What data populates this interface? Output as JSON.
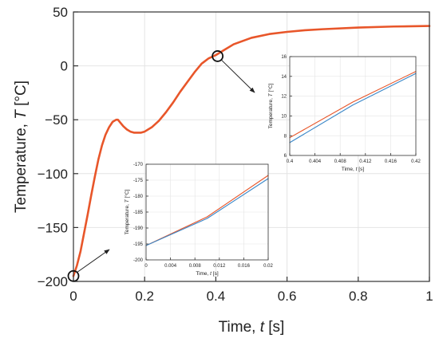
{
  "chart_data": [
    {
      "type": "line",
      "role": "main",
      "xlabel": "Time, t [s]",
      "ylabel": "Temperature, T [°C]",
      "xlim": [
        0,
        1
      ],
      "ylim": [
        -200,
        50
      ],
      "xticks": [
        0,
        0.2,
        0.4,
        0.6,
        0.8,
        1
      ],
      "xtick_labels": [
        "0",
        "0.2",
        "0.4",
        "0.6",
        "0.8",
        "1"
      ],
      "yticks": [
        -200,
        -150,
        -100,
        -50,
        0,
        50
      ],
      "ytick_labels": [
        "−200",
        "−150",
        "−100",
        "−50",
        "0",
        "50"
      ],
      "grid": true,
      "series": [
        {
          "color": "#e8562a",
          "x": [
            0,
            0.01,
            0.02,
            0.03,
            0.04,
            0.05,
            0.06,
            0.07,
            0.08,
            0.09,
            0.1,
            0.11,
            0.12,
            0.125,
            0.13,
            0.14,
            0.15,
            0.16,
            0.17,
            0.18,
            0.19,
            0.2,
            0.22,
            0.24,
            0.26,
            0.28,
            0.3,
            0.32,
            0.34,
            0.36,
            0.38,
            0.4,
            0.42,
            0.45,
            0.5,
            0.55,
            0.6,
            0.65,
            0.7,
            0.8,
            0.9,
            1.0
          ],
          "y": [
            -195,
            -185,
            -172,
            -155,
            -138,
            -120,
            -103,
            -87,
            -74,
            -64,
            -57,
            -52,
            -50,
            -50,
            -52,
            -56,
            -59,
            -61,
            -62,
            -62,
            -62,
            -61,
            -57,
            -51,
            -43,
            -34,
            -24,
            -15,
            -6,
            2,
            7,
            10,
            14,
            20,
            26,
            29.5,
            31.5,
            33,
            34,
            35.5,
            36.5,
            37
          ]
        }
      ],
      "markers": [
        {
          "x": 0,
          "y": -195
        },
        {
          "x": 0.405,
          "y": 9
        }
      ]
    },
    {
      "type": "line",
      "role": "inset",
      "xlabel": "Time, t [s]",
      "ylabel": "Temperature, T [°C]",
      "xlim": [
        0,
        0.02
      ],
      "ylim": [
        -200,
        -170
      ],
      "xticks": [
        0,
        0.004,
        0.008,
        0.012,
        0.016,
        0.02
      ],
      "xtick_labels": [
        "0",
        "0.004",
        "0.008",
        "0.012",
        "0.016",
        "0.02"
      ],
      "yticks": [
        -200,
        -195,
        -190,
        -185,
        -180,
        -175,
        -170
      ],
      "ytick_labels": [
        "-200",
        "-195",
        "-190",
        "-185",
        "-180",
        "-175",
        "-170"
      ],
      "grid": true,
      "series": [
        {
          "color": "#e8562a",
          "x": [
            0,
            0.01,
            0.02
          ],
          "y": [
            -195.5,
            -186.5,
            -173.5
          ]
        },
        {
          "color": "#3a87c8",
          "x": [
            0,
            0.01,
            0.02
          ],
          "y": [
            -195.5,
            -187,
            -174.5
          ]
        }
      ]
    },
    {
      "type": "line",
      "role": "inset",
      "xlabel": "Time, t [s]",
      "ylabel": "Temperature, T [°C]",
      "xlim": [
        0.4,
        0.42
      ],
      "ylim": [
        6,
        16
      ],
      "xticks": [
        0.4,
        0.404,
        0.408,
        0.412,
        0.416,
        0.42
      ],
      "xtick_labels": [
        "0.4",
        "0.404",
        "0.408",
        "0.412",
        "0.416",
        "0.42"
      ],
      "yticks": [
        6,
        8,
        10,
        12,
        14,
        16
      ],
      "ytick_labels": [
        "6",
        "8",
        "10",
        "12",
        "14",
        "16"
      ],
      "grid": true,
      "series": [
        {
          "color": "#e8562a",
          "x": [
            0.4,
            0.41,
            0.42
          ],
          "y": [
            7.8,
            11.4,
            14.5
          ]
        },
        {
          "color": "#3a87c8",
          "x": [
            0.4,
            0.41,
            0.42
          ],
          "y": [
            7.3,
            11.1,
            14.3
          ]
        }
      ]
    }
  ]
}
